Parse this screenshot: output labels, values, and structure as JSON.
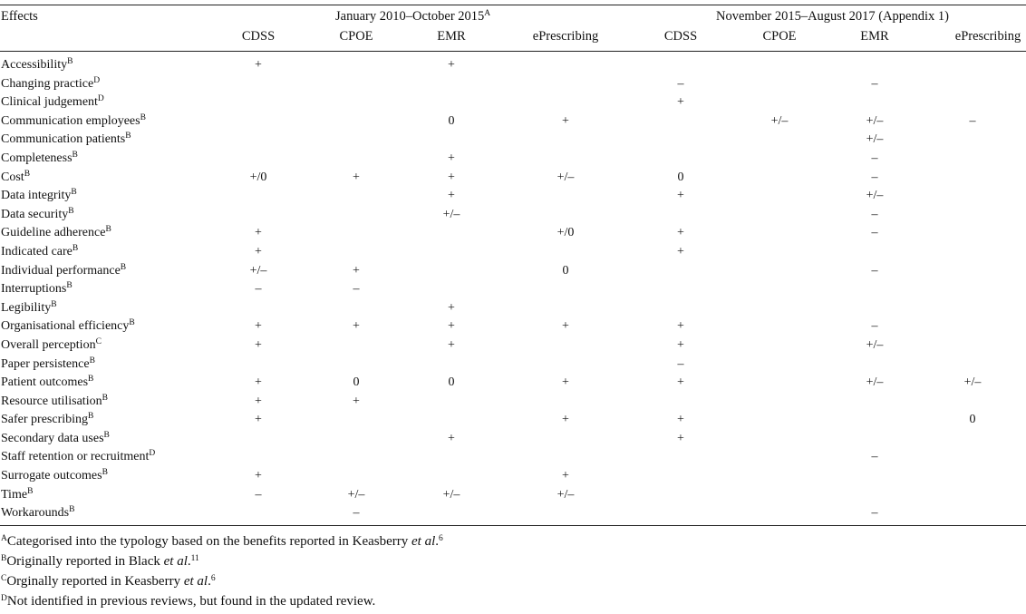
{
  "table": {
    "effects_header": "Effects",
    "period1": {
      "label": "January 2010–October 2015",
      "note": "A"
    },
    "period2": {
      "label": "November 2015–August 2017 (Appendix 1)"
    },
    "columns": [
      "CDSS",
      "CPOE",
      "EMR",
      "ePrescribing",
      "CDSS",
      "CPOE",
      "EMR",
      "ePrescribing"
    ],
    "rows": [
      {
        "effect": "Accessibility",
        "note": "B",
        "values": [
          "+",
          "",
          "+",
          "",
          "",
          "",
          "",
          ""
        ]
      },
      {
        "effect": "Changing practice",
        "note": "D",
        "values": [
          "",
          "",
          "",
          "",
          "–",
          "",
          "–",
          ""
        ]
      },
      {
        "effect": "Clinical judgement",
        "note": "D",
        "values": [
          "",
          "",
          "",
          "",
          "+",
          "",
          "",
          ""
        ]
      },
      {
        "effect": "Communication employees",
        "note": "B",
        "values": [
          "",
          "",
          "0",
          "+",
          "",
          "+/–",
          "+/–",
          "–"
        ]
      },
      {
        "effect": "Communication patients",
        "note": "B",
        "values": [
          "",
          "",
          "",
          "",
          "",
          "",
          "+/–",
          ""
        ]
      },
      {
        "effect": "Completeness",
        "note": "B",
        "values": [
          "",
          "",
          "+",
          "",
          "",
          "",
          "–",
          ""
        ]
      },
      {
        "effect": "Cost",
        "note": "B",
        "values": [
          "+/0",
          "+",
          "+",
          "+/–",
          "0",
          "",
          "–",
          ""
        ]
      },
      {
        "effect": "Data integrity",
        "note": "B",
        "values": [
          "",
          "",
          "+",
          "",
          "+",
          "",
          "+/–",
          ""
        ]
      },
      {
        "effect": "Data security",
        "note": "B",
        "values": [
          "",
          "",
          "+/–",
          "",
          "",
          "",
          "–",
          ""
        ]
      },
      {
        "effect": "Guideline adherence",
        "note": "B",
        "values": [
          "+",
          "",
          "",
          "+/0",
          "+",
          "",
          "–",
          ""
        ]
      },
      {
        "effect": "Indicated care",
        "note": "B",
        "values": [
          "+",
          "",
          "",
          "",
          "+",
          "",
          "",
          ""
        ]
      },
      {
        "effect": "Individual performance",
        "note": "B",
        "values": [
          "+/–",
          "+",
          "",
          "0",
          "",
          "",
          "–",
          ""
        ]
      },
      {
        "effect": "Interruptions",
        "note": "B",
        "values": [
          "–",
          "–",
          "",
          "",
          "",
          "",
          "",
          ""
        ]
      },
      {
        "effect": "Legibility",
        "note": "B",
        "values": [
          "",
          "",
          "+",
          "",
          "",
          "",
          "",
          ""
        ]
      },
      {
        "effect": "Organisational efficiency",
        "note": "B",
        "values": [
          "+",
          "+",
          "+",
          "+",
          "+",
          "",
          "–",
          ""
        ]
      },
      {
        "effect": "Overall perception",
        "note": "C",
        "values": [
          "+",
          "",
          "+",
          "",
          "+",
          "",
          "+/–",
          ""
        ]
      },
      {
        "effect": "Paper persistence",
        "note": "B",
        "values": [
          "",
          "",
          "",
          "",
          "–",
          "",
          "",
          ""
        ]
      },
      {
        "effect": "Patient outcomes",
        "note": "B",
        "values": [
          "+",
          "0",
          "0",
          "+",
          "+",
          "",
          "+/–",
          "+/–"
        ]
      },
      {
        "effect": "Resource utilisation",
        "note": "B",
        "values": [
          "+",
          "+",
          "",
          "",
          "",
          "",
          "",
          ""
        ]
      },
      {
        "effect": "Safer prescribing",
        "note": "B",
        "values": [
          "+",
          "",
          "",
          "+",
          "+",
          "",
          "",
          "0"
        ]
      },
      {
        "effect": "Secondary data uses",
        "note": "B",
        "values": [
          "",
          "",
          "+",
          "",
          "+",
          "",
          "",
          ""
        ]
      },
      {
        "effect": "Staff retention or recruitment",
        "note": "D",
        "values": [
          "",
          "",
          "",
          "",
          "",
          "",
          "–",
          ""
        ]
      },
      {
        "effect": "Surrogate outcomes",
        "note": "B",
        "values": [
          "+",
          "",
          "",
          "+",
          "",
          "",
          "",
          ""
        ]
      },
      {
        "effect": "Time",
        "note": "B",
        "values": [
          "–",
          "+/–",
          "+/–",
          "+/–",
          "",
          "",
          "",
          ""
        ]
      },
      {
        "effect": "Workarounds",
        "note": "B",
        "values": [
          "",
          "–",
          "",
          "",
          "",
          "",
          "–",
          ""
        ]
      }
    ]
  },
  "footnotes": [
    {
      "mark": "A",
      "text": "Categorised into the typology based on the benefits reported in Keasberry ",
      "italic": "et al",
      "after": ".",
      "ref": "6"
    },
    {
      "mark": "B",
      "text": "Originally reported in Black ",
      "italic": "et al",
      "after": ".",
      "ref": "11"
    },
    {
      "mark": "C",
      "text": "Orginally reported in Keasberry ",
      "italic": "et al",
      "after": ".",
      "ref": "6"
    },
    {
      "mark": "D",
      "text": "Not identified in previous reviews, but found in the updated review.",
      "italic": "",
      "after": "",
      "ref": ""
    }
  ]
}
